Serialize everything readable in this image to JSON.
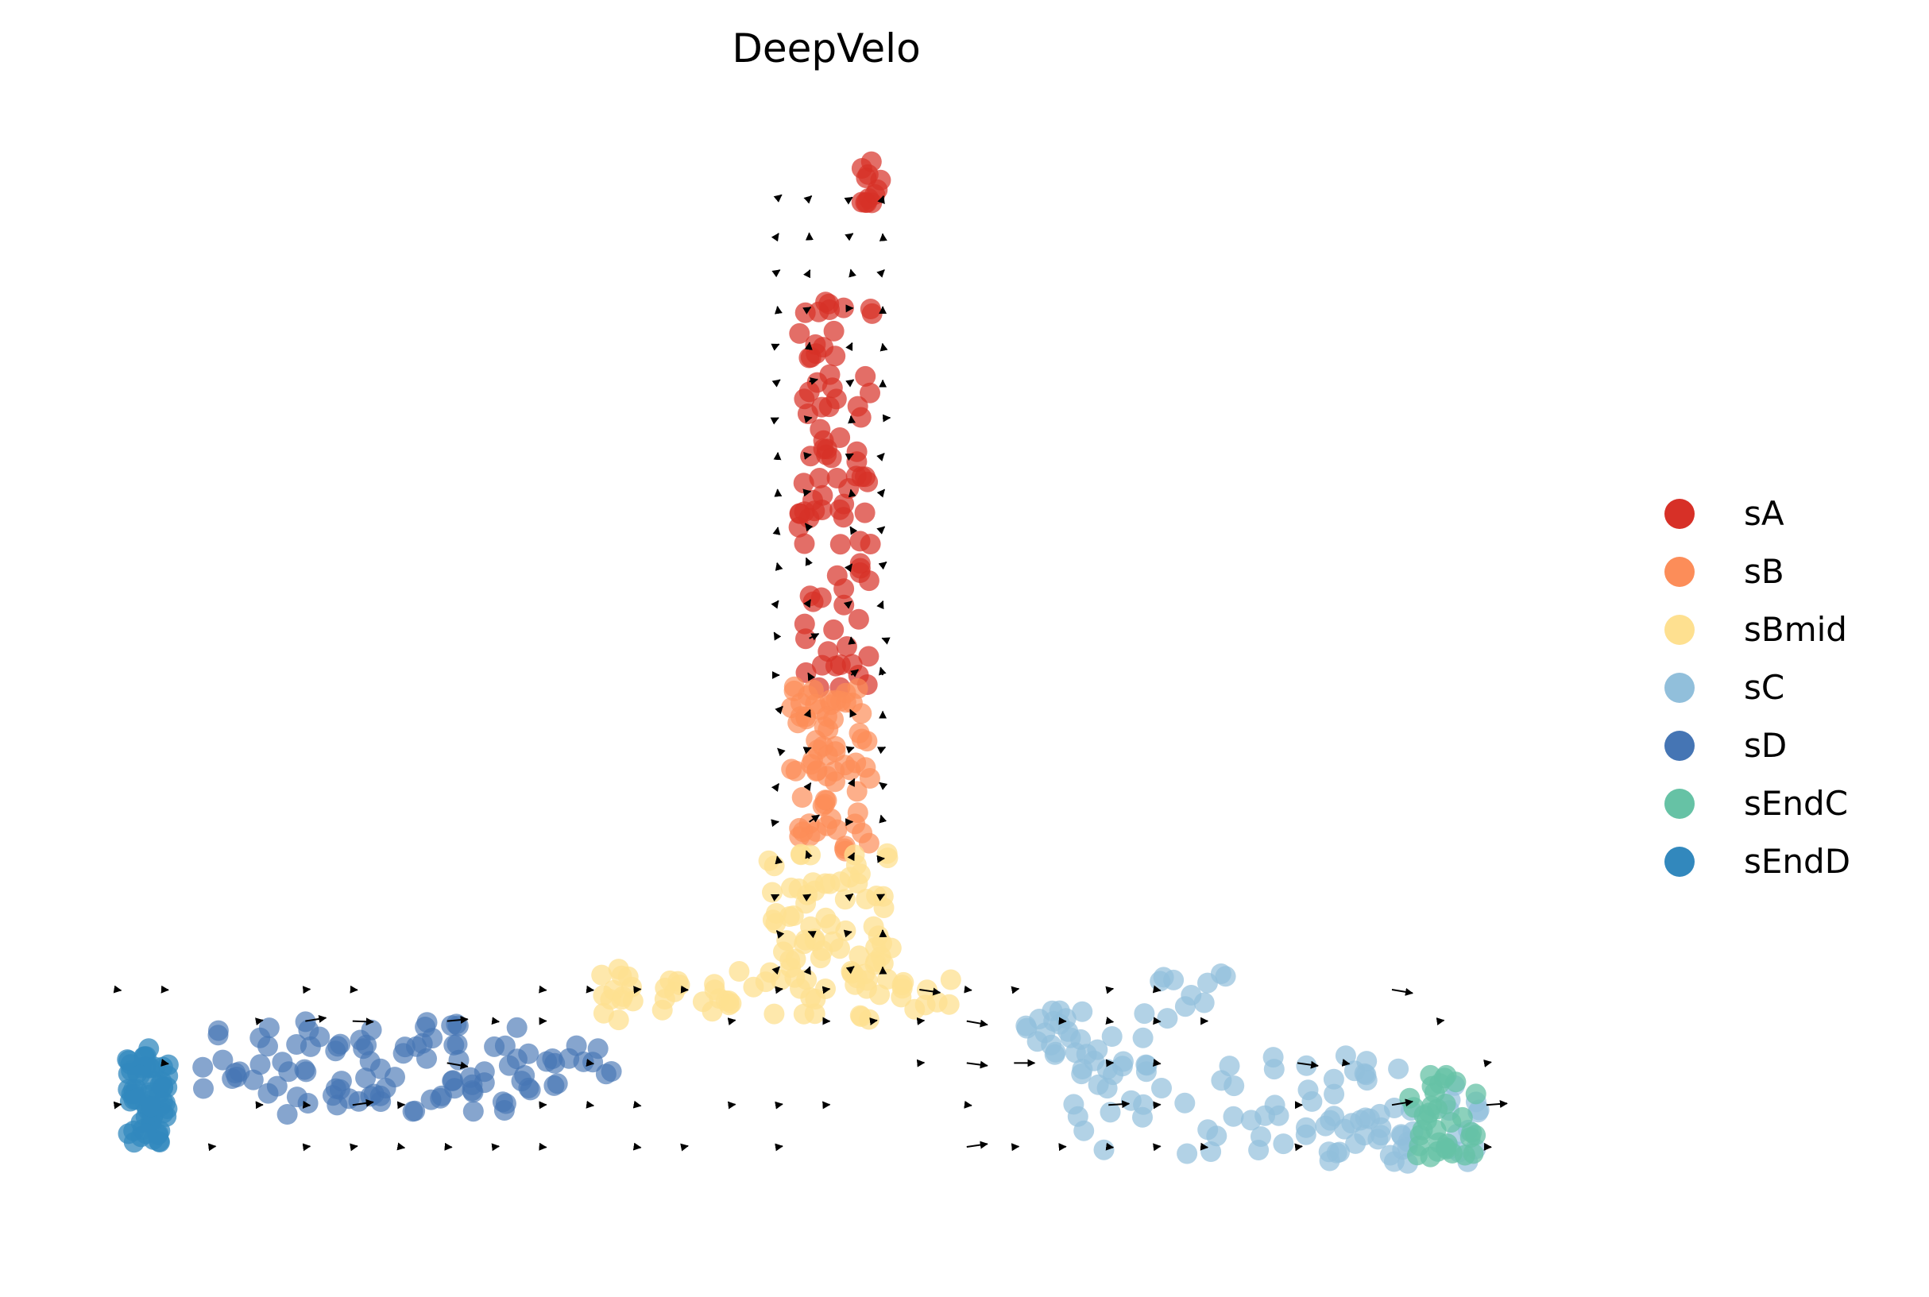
{
  "chart_data": {
    "type": "scatter",
    "title": "DeepVelo",
    "xlabel": "",
    "ylabel": "",
    "axes_visible": false,
    "grid": false,
    "legend_position": "right",
    "overlay": "velocity arrows (streamline grid)",
    "legend": [
      {
        "name": "sA",
        "color": "#d73027"
      },
      {
        "name": "sB",
        "color": "#fc8d59"
      },
      {
        "name": "sBmid",
        "color": "#fee090"
      },
      {
        "name": "sC",
        "color": "#91bfdb"
      },
      {
        "name": "sD",
        "color": "#4575b4"
      },
      {
        "name": "sEndC",
        "color": "#66c2a5"
      },
      {
        "name": "sEndD",
        "color": "#3288bd"
      }
    ],
    "series": [
      {
        "name": "sA",
        "color": "#d73027",
        "alpha": 0.7,
        "regions": [
          {
            "n": 12,
            "x": [
              0.03,
              0.05
            ],
            "y": [
              0.94,
              0.99
            ]
          },
          {
            "n": 90,
            "x": [
              -0.03,
              0.04
            ],
            "y": [
              0.48,
              0.86
            ]
          }
        ]
      },
      {
        "name": "sB",
        "color": "#fc8d59",
        "alpha": 0.7,
        "regions": [
          {
            "n": 70,
            "x": [
              -0.04,
              0.04
            ],
            "y": [
              0.33,
              0.49
            ]
          }
        ]
      },
      {
        "name": "sBmid",
        "color": "#fee090",
        "alpha": 0.75,
        "regions": [
          {
            "n": 70,
            "x": [
              -0.06,
              0.06
            ],
            "y": [
              0.2,
              0.33
            ]
          },
          {
            "n": 55,
            "x": [
              -0.22,
              0.14
            ],
            "y": [
              0.17,
              0.22
            ]
          }
        ]
      },
      {
        "name": "sC",
        "color": "#91bfdb",
        "alpha": 0.7,
        "regions": [
          {
            "n": 22,
            "x": [
              0.18,
              0.3
            ],
            "y": [
              0.12,
              0.18
            ]
          },
          {
            "n": 55,
            "x": [
              0.23,
              0.55
            ],
            "y": [
              0.04,
              0.14
            ]
          },
          {
            "n": 40,
            "x": [
              0.45,
              0.62
            ],
            "y": [
              0.03,
              0.12
            ]
          },
          {
            "n": 10,
            "x": [
              0.3,
              0.4
            ],
            "y": [
              0.17,
              0.23
            ]
          }
        ]
      },
      {
        "name": "sD",
        "color": "#4575b4",
        "alpha": 0.65,
        "regions": [
          {
            "n": 90,
            "x": [
              -0.6,
              -0.28
            ],
            "y": [
              0.08,
              0.17
            ]
          },
          {
            "n": 15,
            "x": [
              -0.3,
              -0.2
            ],
            "y": [
              0.1,
              0.15
            ]
          }
        ]
      },
      {
        "name": "sEndC",
        "color": "#66c2a5",
        "alpha": 0.75,
        "regions": [
          {
            "n": 35,
            "x": [
              0.55,
              0.62
            ],
            "y": [
              0.04,
              0.12
            ]
          }
        ]
      },
      {
        "name": "sEndD",
        "color": "#3288bd",
        "alpha": 0.75,
        "regions": [
          {
            "n": 65,
            "x": [
              -0.67,
              -0.63
            ],
            "y": [
              0.05,
              0.15
            ]
          }
        ]
      }
    ]
  }
}
